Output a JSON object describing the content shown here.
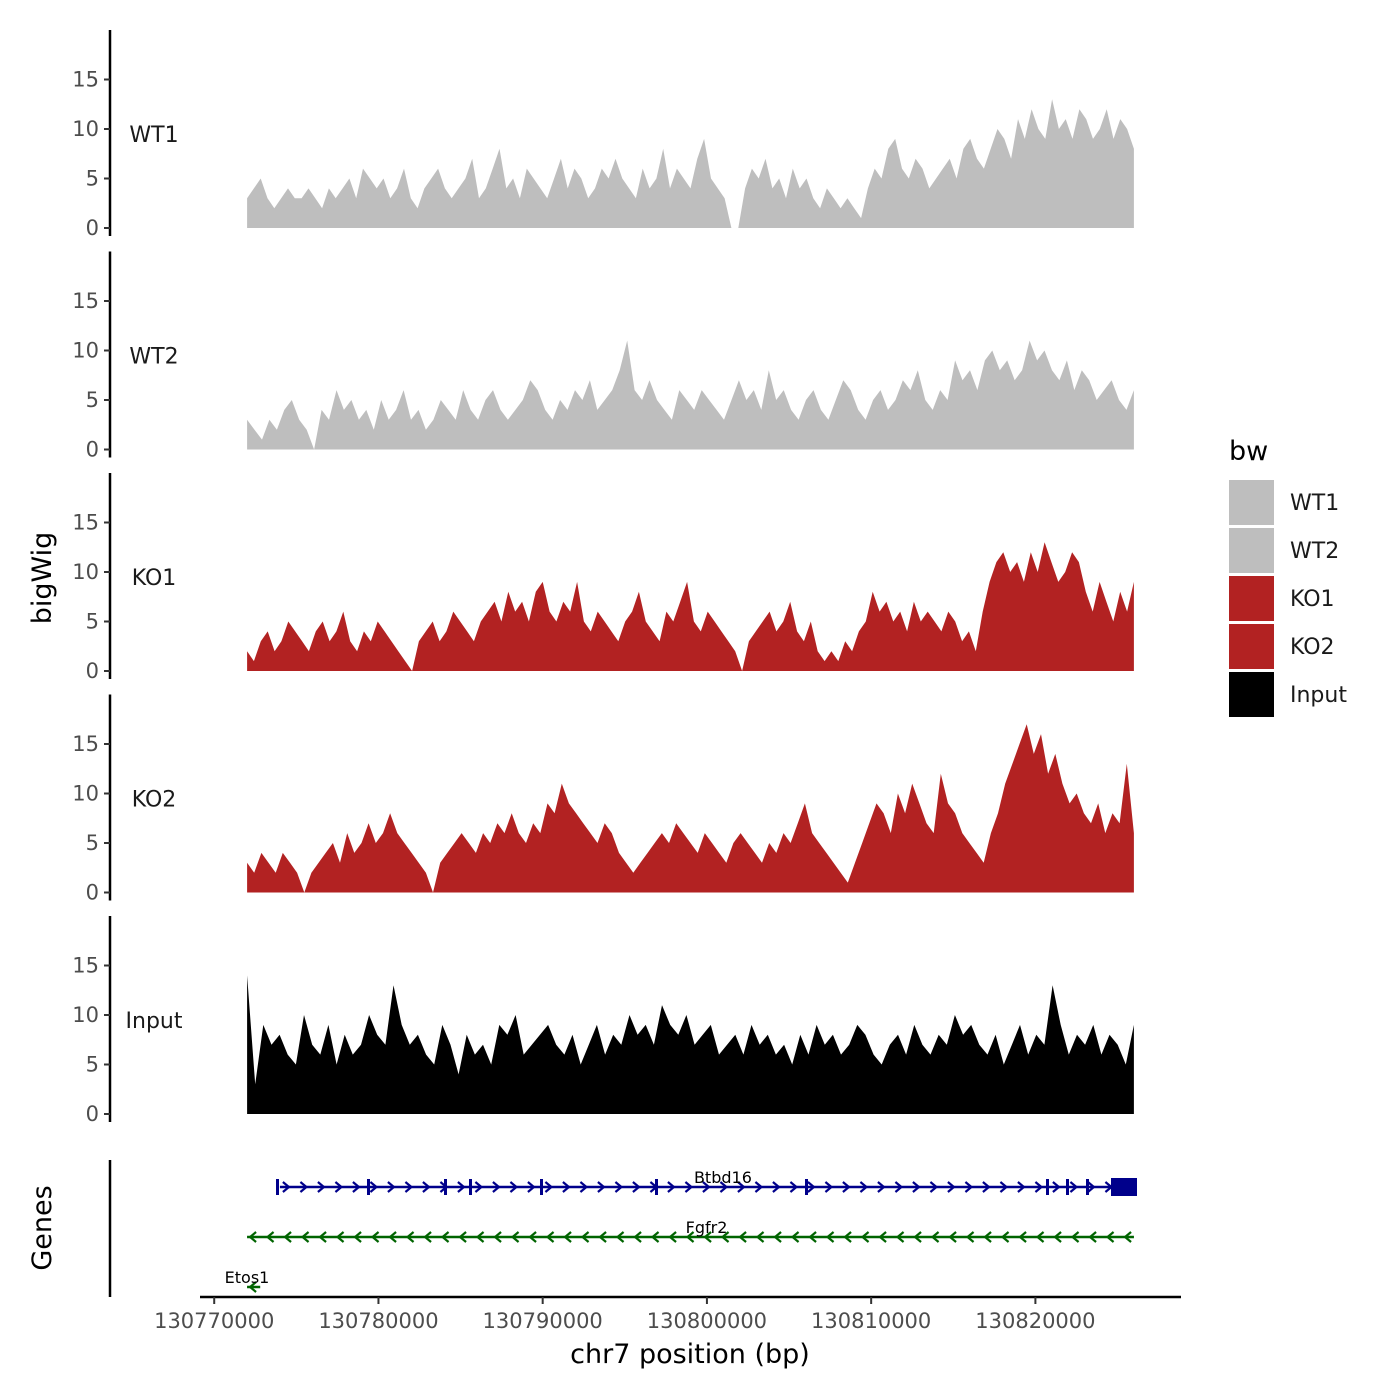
{
  "chart_data": {
    "type": "area",
    "chromosome": "chr7",
    "xlabel": "chr7 position (bp)",
    "ylabel": "bigWig",
    "genes_label": "Genes",
    "xlim": [
      130769500,
      130828500
    ],
    "x_ticks": [
      130770000,
      130780000,
      130790000,
      130800000,
      130810000,
      130820000
    ],
    "x_tick_labels": [
      "130770000",
      "130780000",
      "130790000",
      "130800000",
      "130810000",
      "130820000"
    ],
    "ylim": [
      0,
      20
    ],
    "y_ticks": [
      0,
      5,
      10,
      15
    ],
    "y_tick_labels": [
      "0",
      "5",
      "10",
      "15"
    ],
    "data_range": [
      130772000,
      130826000
    ],
    "legend_title": "bw",
    "legend": [
      {
        "label": "WT1",
        "color": "#bebebe"
      },
      {
        "label": "WT2",
        "color": "#bebebe"
      },
      {
        "label": "KO1",
        "color": "#b22222"
      },
      {
        "label": "KO2",
        "color": "#b22222"
      },
      {
        "label": "Input",
        "color": "#000000"
      }
    ],
    "tracks": [
      {
        "label": "WT1",
        "color": "#bebebe",
        "values": [
          3,
          4,
          5,
          3,
          2,
          3,
          4,
          3,
          3,
          4,
          3,
          2,
          4,
          3,
          4,
          5,
          3,
          6,
          5,
          4,
          5,
          3,
          4,
          6,
          3,
          2,
          4,
          5,
          6,
          4,
          3,
          4,
          5,
          7,
          3,
          4,
          6,
          8,
          4,
          5,
          3,
          6,
          5,
          4,
          3,
          5,
          7,
          4,
          6,
          5,
          3,
          4,
          6,
          5,
          7,
          5,
          4,
          3,
          6,
          4,
          5,
          8,
          4,
          6,
          5,
          4,
          7,
          9,
          5,
          4,
          3,
          0,
          0,
          4,
          6,
          5,
          7,
          4,
          5,
          3,
          6,
          4,
          5,
          3,
          2,
          4,
          3,
          2,
          3,
          2,
          1,
          4,
          6,
          5,
          8,
          9,
          6,
          5,
          7,
          6,
          4,
          5,
          6,
          7,
          5,
          8,
          9,
          7,
          6,
          8,
          10,
          9,
          7,
          11,
          9,
          12,
          10,
          9,
          13,
          10,
          11,
          9,
          12,
          11,
          9,
          10,
          12,
          9,
          11,
          10,
          8
        ]
      },
      {
        "label": "WT2",
        "color": "#bebebe",
        "values": [
          3,
          2,
          1,
          3,
          2,
          4,
          5,
          3,
          2,
          0,
          4,
          3,
          6,
          4,
          5,
          3,
          4,
          2,
          5,
          3,
          4,
          6,
          3,
          4,
          2,
          3,
          5,
          4,
          3,
          6,
          4,
          3,
          5,
          6,
          4,
          3,
          4,
          5,
          7,
          6,
          4,
          3,
          5,
          4,
          6,
          5,
          7,
          4,
          5,
          6,
          8,
          11,
          6,
          5,
          7,
          5,
          4,
          3,
          6,
          5,
          4,
          6,
          5,
          4,
          3,
          5,
          7,
          5,
          6,
          4,
          8,
          5,
          6,
          4,
          3,
          5,
          6,
          4,
          3,
          5,
          7,
          6,
          4,
          3,
          5,
          6,
          4,
          5,
          7,
          6,
          8,
          5,
          4,
          6,
          5,
          9,
          7,
          8,
          6,
          9,
          10,
          8,
          9,
          7,
          8,
          11,
          9,
          10,
          8,
          7,
          9,
          6,
          8,
          7,
          5,
          6,
          7,
          5,
          4,
          6
        ]
      },
      {
        "label": "KO1",
        "color": "#b22222",
        "values": [
          2,
          1,
          3,
          4,
          2,
          3,
          5,
          4,
          3,
          2,
          4,
          5,
          3,
          4,
          6,
          3,
          2,
          4,
          3,
          5,
          4,
          3,
          2,
          1,
          0,
          3,
          4,
          5,
          3,
          4,
          6,
          5,
          4,
          3,
          5,
          6,
          7,
          5,
          8,
          6,
          7,
          5,
          8,
          9,
          6,
          5,
          7,
          6,
          9,
          5,
          4,
          6,
          5,
          4,
          3,
          5,
          6,
          8,
          5,
          4,
          3,
          6,
          5,
          7,
          9,
          5,
          4,
          6,
          5,
          4,
          3,
          2,
          0,
          3,
          4,
          5,
          6,
          4,
          5,
          7,
          4,
          3,
          5,
          2,
          1,
          2,
          1,
          3,
          2,
          4,
          5,
          8,
          6,
          7,
          5,
          6,
          4,
          7,
          5,
          6,
          5,
          4,
          6,
          5,
          3,
          4,
          2,
          6,
          9,
          11,
          12,
          10,
          11,
          9,
          12,
          10,
          13,
          11,
          9,
          10,
          12,
          11,
          8,
          6,
          9,
          7,
          5,
          8,
          6,
          9
        ]
      },
      {
        "label": "KO2",
        "color": "#b22222",
        "values": [
          3,
          2,
          4,
          3,
          2,
          4,
          3,
          2,
          0,
          2,
          3,
          4,
          5,
          3,
          6,
          4,
          5,
          7,
          5,
          6,
          8,
          6,
          5,
          4,
          3,
          2,
          0,
          3,
          4,
          5,
          6,
          5,
          4,
          6,
          5,
          7,
          6,
          8,
          6,
          5,
          7,
          6,
          9,
          8,
          11,
          9,
          8,
          7,
          6,
          5,
          7,
          6,
          4,
          3,
          2,
          3,
          4,
          5,
          6,
          5,
          7,
          6,
          5,
          4,
          6,
          5,
          4,
          3,
          5,
          6,
          5,
          4,
          3,
          5,
          4,
          6,
          5,
          7,
          9,
          6,
          5,
          4,
          3,
          2,
          1,
          3,
          5,
          7,
          9,
          8,
          6,
          10,
          8,
          11,
          9,
          7,
          6,
          12,
          9,
          8,
          6,
          5,
          4,
          3,
          6,
          8,
          11,
          13,
          15,
          17,
          14,
          16,
          12,
          14,
          11,
          9,
          10,
          8,
          7,
          9,
          6,
          8,
          7,
          13,
          6
        ]
      },
      {
        "label": "Input",
        "color": "#000000",
        "values": [
          14,
          3,
          9,
          7,
          8,
          6,
          5,
          10,
          7,
          6,
          9,
          5,
          8,
          6,
          7,
          10,
          8,
          7,
          13,
          9,
          7,
          8,
          6,
          5,
          9,
          7,
          4,
          8,
          6,
          7,
          5,
          9,
          8,
          10,
          6,
          7,
          8,
          9,
          7,
          6,
          8,
          5,
          7,
          9,
          6,
          8,
          7,
          10,
          8,
          9,
          7,
          11,
          9,
          8,
          10,
          7,
          8,
          9,
          6,
          7,
          8,
          6,
          9,
          7,
          8,
          6,
          7,
          5,
          8,
          6,
          9,
          7,
          8,
          6,
          7,
          9,
          8,
          6,
          5,
          7,
          8,
          6,
          9,
          7,
          6,
          8,
          7,
          10,
          8,
          9,
          7,
          6,
          8,
          5,
          7,
          9,
          6,
          8,
          7,
          13,
          9,
          6,
          8,
          7,
          9,
          6,
          8,
          7,
          5,
          9
        ]
      }
    ],
    "genes": [
      {
        "name": "Btbd16",
        "start": 130774000,
        "end": 130826000,
        "strand": "+",
        "color": "#00008b",
        "row": 0
      },
      {
        "name": "Fgfr2",
        "start": 130772000,
        "end": 130826000,
        "strand": "-",
        "color": "#006400",
        "row": 1
      },
      {
        "name": "Etos1",
        "start": 130772000,
        "end": 130772800,
        "strand": "-",
        "color": "#006400",
        "row": 2
      }
    ]
  }
}
